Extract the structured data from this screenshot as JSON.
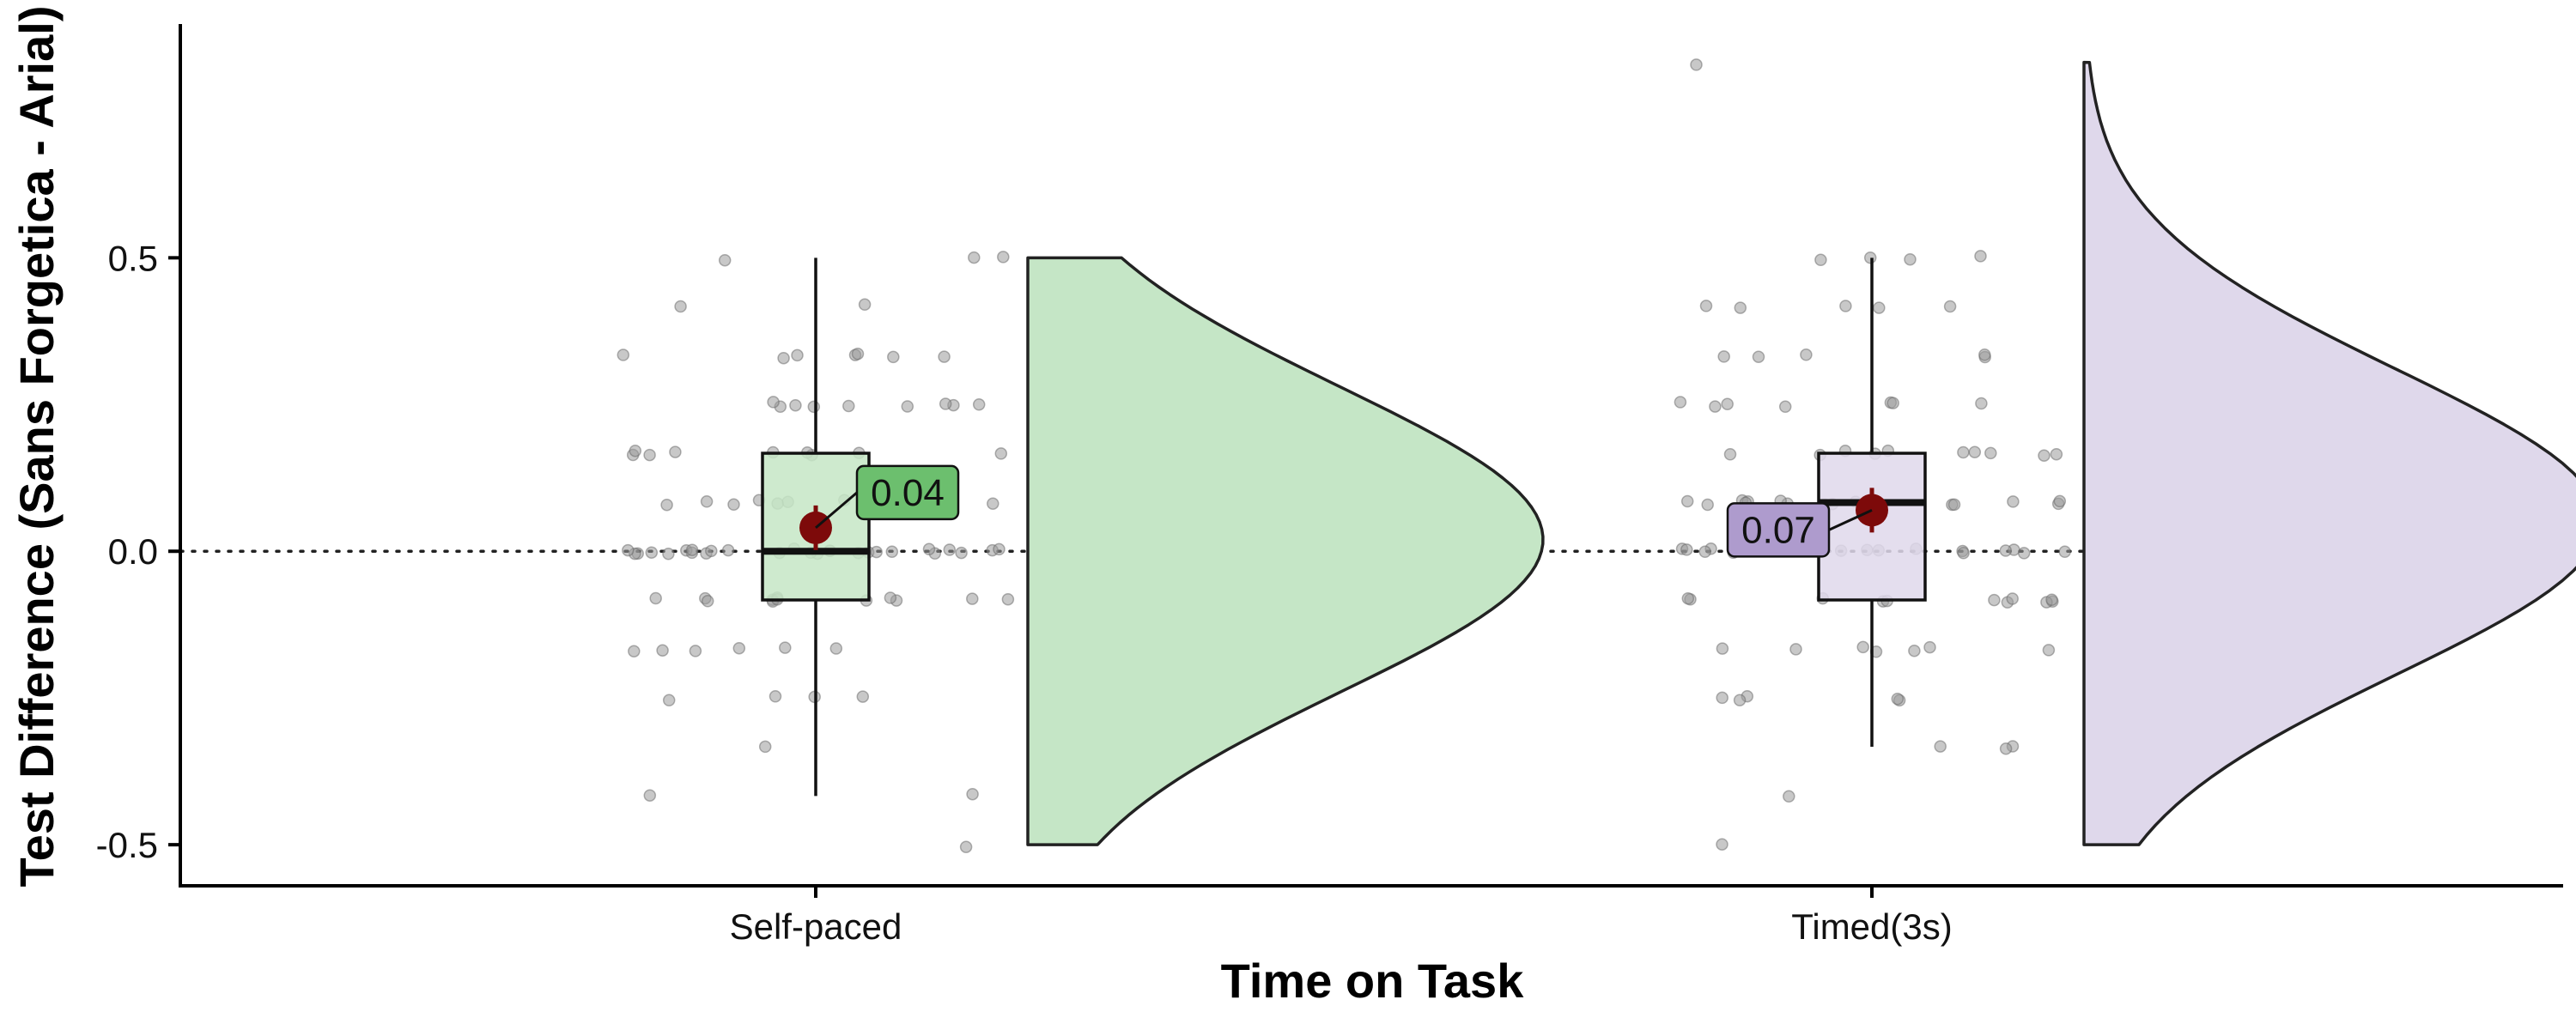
{
  "chart_data": {
    "type": "raincloud",
    "xlabel": "Time on Task",
    "ylabel": "Test Difference (Sans Forgetica - Arial)",
    "categories": [
      "Self-paced",
      "Timed(3s)"
    ],
    "ylim": [
      -0.57,
      0.91
    ],
    "yticks": [
      -0.5,
      0.0,
      0.5
    ],
    "ytick_labels": [
      "-0.5",
      "0.0",
      "0.5"
    ],
    "reference_line": 0.0,
    "colors": {
      "Self-paced": "#c5e6c6",
      "Timed(3s)": "#dfd8eb",
      "Self-paced_label": "#6cbf6e",
      "Timed(3s)_label": "#ae9bcd",
      "mean_point": "#7d0a0a",
      "points": "#9a9a9a"
    },
    "groups": [
      {
        "name": "Self-paced",
        "box": {
          "q1": -0.083,
          "median": 0.0,
          "q3": 0.167,
          "whisker_low": -0.417,
          "whisker_high": 0.5
        },
        "mean": 0.04,
        "mean_label": "0.04",
        "density": {
          "ymin": -0.5,
          "ymax": 0.5,
          "peak": 0.02
        },
        "points": [
          -0.5,
          -0.417,
          -0.417,
          -0.333,
          -0.25,
          -0.25,
          -0.25,
          -0.25,
          -0.167,
          -0.167,
          -0.167,
          -0.167,
          -0.167,
          -0.167,
          -0.083,
          -0.083,
          -0.083,
          -0.083,
          -0.083,
          -0.083,
          -0.083,
          -0.083,
          -0.083,
          -0.083,
          -0.083,
          -0.083,
          0.0,
          0.0,
          0.0,
          0.0,
          0.0,
          0.0,
          0.0,
          0.0,
          0.0,
          0.0,
          0.0,
          0.0,
          0.0,
          0.0,
          0.0,
          0.0,
          0.0,
          0.0,
          0.0,
          0.0,
          0.0,
          0.0,
          0.0,
          0.0,
          0.0,
          0.0,
          0.0,
          0.083,
          0.083,
          0.083,
          0.083,
          0.083,
          0.083,
          0.083,
          0.083,
          0.083,
          0.083,
          0.167,
          0.167,
          0.167,
          0.167,
          0.167,
          0.167,
          0.167,
          0.167,
          0.167,
          0.25,
          0.25,
          0.25,
          0.25,
          0.25,
          0.25,
          0.25,
          0.25,
          0.25,
          0.333,
          0.333,
          0.333,
          0.333,
          0.333,
          0.333,
          0.333,
          0.417,
          0.417,
          0.5,
          0.5,
          0.5
        ]
      },
      {
        "name": "Timed(3s)",
        "box": {
          "q1": -0.083,
          "median": 0.083,
          "q3": 0.167,
          "whisker_low": -0.333,
          "whisker_high": 0.5
        },
        "mean": 0.07,
        "mean_label": "0.07",
        "density": {
          "ymin": -0.5,
          "ymax": 0.833,
          "peak": 0.05
        },
        "points": [
          -0.5,
          -0.417,
          -0.333,
          -0.333,
          -0.333,
          -0.25,
          -0.25,
          -0.25,
          -0.25,
          -0.25,
          -0.167,
          -0.167,
          -0.167,
          -0.167,
          -0.167,
          -0.167,
          -0.167,
          -0.083,
          -0.083,
          -0.083,
          -0.083,
          -0.083,
          -0.083,
          -0.083,
          -0.083,
          -0.083,
          -0.083,
          -0.083,
          0.0,
          0.0,
          0.0,
          0.0,
          0.0,
          0.0,
          0.0,
          0.0,
          0.0,
          0.0,
          0.0,
          0.0,
          0.0,
          0.0,
          0.0,
          0.0,
          0.0,
          0.083,
          0.083,
          0.083,
          0.083,
          0.083,
          0.083,
          0.083,
          0.083,
          0.083,
          0.083,
          0.083,
          0.083,
          0.083,
          0.083,
          0.083,
          0.083,
          0.167,
          0.167,
          0.167,
          0.167,
          0.167,
          0.167,
          0.167,
          0.167,
          0.167,
          0.167,
          0.25,
          0.25,
          0.25,
          0.25,
          0.25,
          0.25,
          0.25,
          0.333,
          0.333,
          0.333,
          0.333,
          0.333,
          0.417,
          0.417,
          0.417,
          0.417,
          0.417,
          0.5,
          0.5,
          0.5,
          0.5,
          0.833
        ]
      }
    ]
  }
}
